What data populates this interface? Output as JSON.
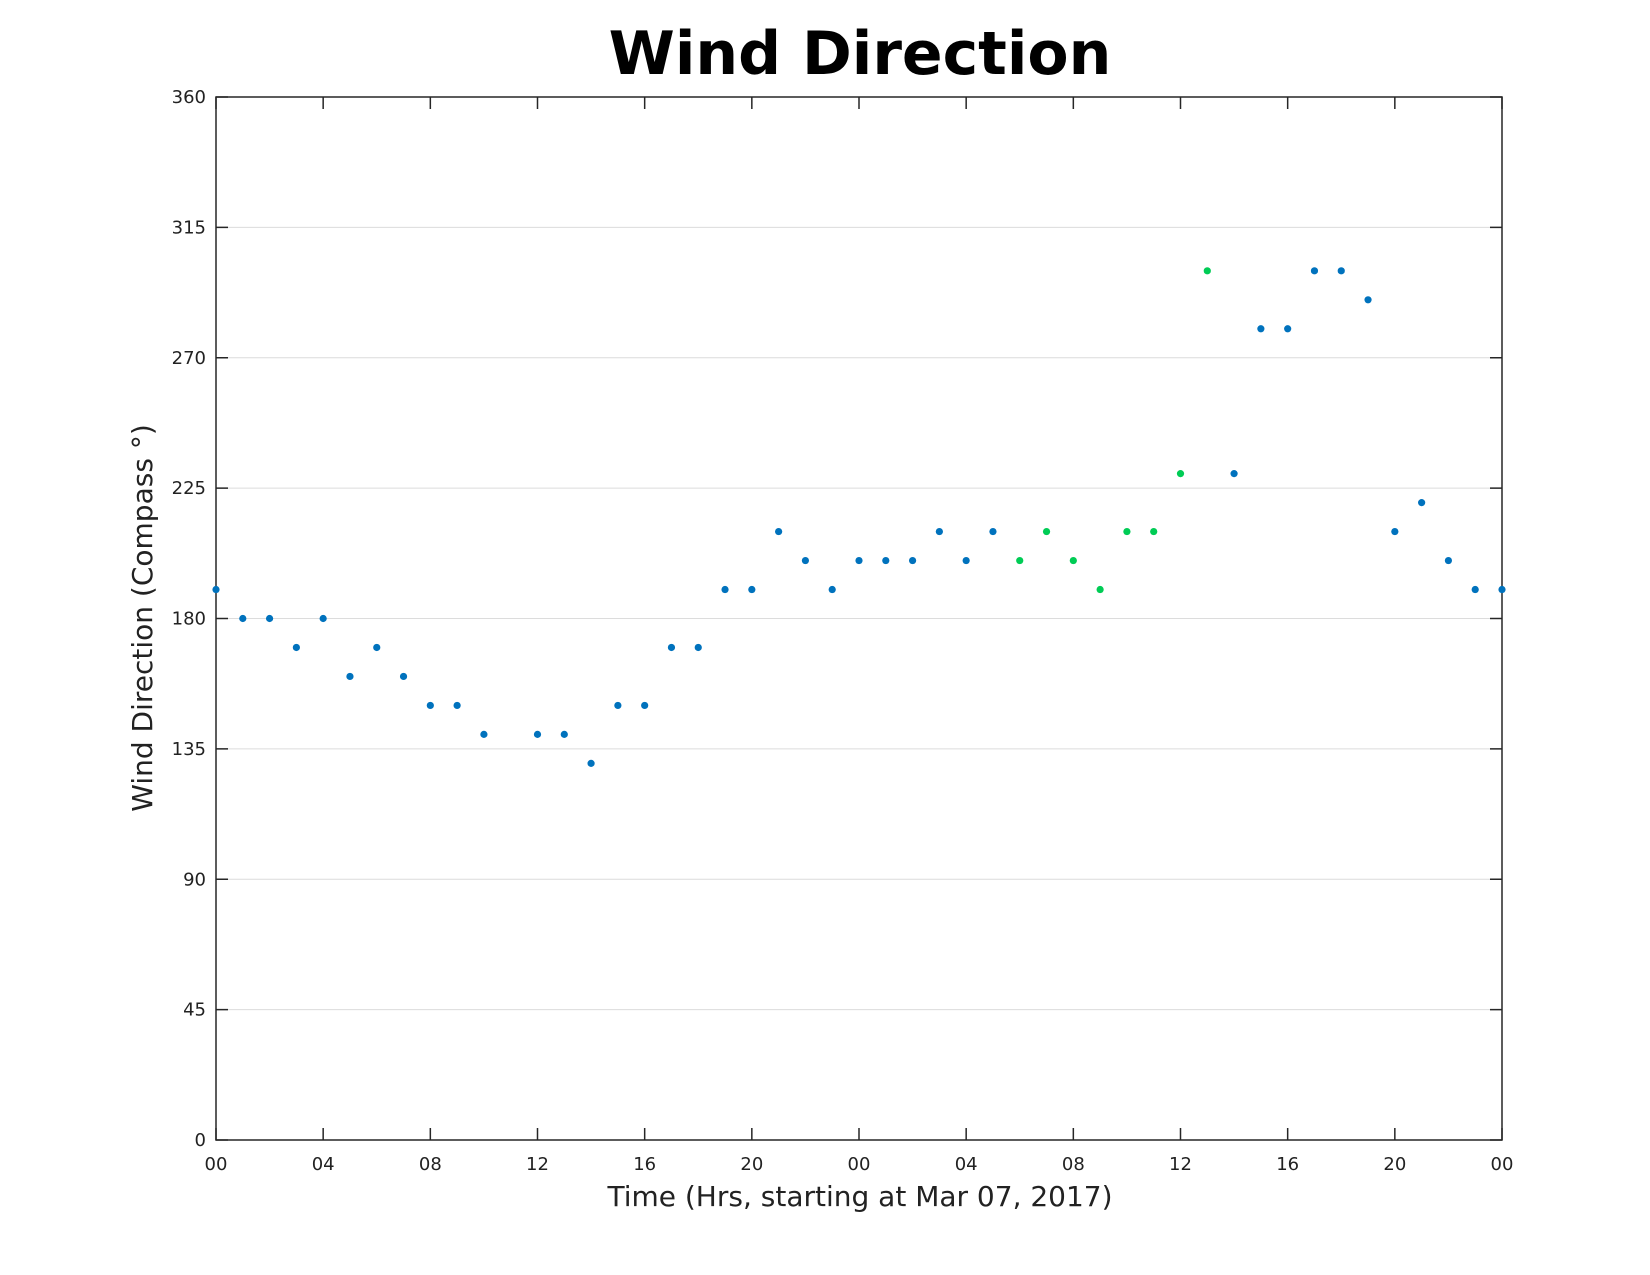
{
  "chart_data": {
    "type": "scatter",
    "title": "Wind Direction",
    "xlabel": "Time (Hrs, starting at Mar 07, 2017)",
    "ylabel": "Wind Direction (Compass °)",
    "xlim": [
      0,
      48
    ],
    "ylim": [
      0,
      360
    ],
    "grid": "horizontal",
    "x_ticks": [
      0,
      4,
      8,
      12,
      16,
      20,
      24,
      28,
      32,
      36,
      40,
      44,
      48
    ],
    "x_tick_labels": [
      "00",
      "04",
      "08",
      "12",
      "16",
      "20",
      "00",
      "04",
      "08",
      "12",
      "16",
      "20",
      "00"
    ],
    "y_ticks": [
      0,
      45,
      90,
      135,
      180,
      225,
      270,
      315,
      360
    ],
    "y_tick_labels": [
      "0",
      "45",
      "90",
      "135",
      "180",
      "225",
      "270",
      "315",
      "360"
    ],
    "colors": {
      "primary": "#0072bd",
      "highlight": "#00cc55"
    },
    "series": [
      {
        "color": "#0072bd",
        "x": [
          0,
          1,
          2,
          3,
          4,
          5,
          6,
          7,
          8,
          9,
          10,
          12,
          13,
          14,
          15,
          16,
          17,
          18,
          19,
          20,
          21,
          22,
          23,
          24,
          25,
          26,
          27,
          28,
          29,
          38,
          39,
          40,
          41,
          42,
          43,
          44,
          45,
          46,
          47,
          48
        ],
        "y": [
          190,
          180,
          180,
          170,
          180,
          160,
          170,
          160,
          150,
          150,
          140,
          140,
          140,
          130,
          150,
          150,
          170,
          170,
          190,
          190,
          210,
          200,
          190,
          200,
          200,
          200,
          210,
          200,
          210,
          230,
          280,
          280,
          300,
          300,
          290,
          210,
          220,
          200,
          190,
          190
        ]
      },
      {
        "color": "#00cc55",
        "x": [
          30,
          31,
          32,
          33,
          34,
          35,
          36,
          37
        ],
        "y": [
          200,
          210,
          200,
          190,
          210,
          210,
          230,
          300
        ]
      }
    ]
  }
}
